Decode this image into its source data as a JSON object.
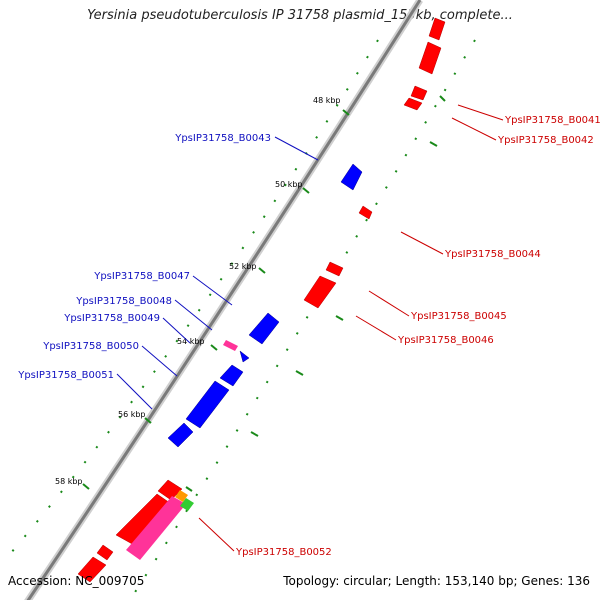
{
  "title": "Yersinia pseudotuberculosis IP 31758 plasmid_153kb, complete...",
  "footer": {
    "accession_label": "Accession:",
    "accession": "NC_009705",
    "topology_label": "Topology:",
    "topology": "circular",
    "length_label": "Length:",
    "length": "153,140 bp",
    "genes_label": "Genes:",
    "genes": "136"
  },
  "kbp_ticks": [
    "48 kbp",
    "50 kbp",
    "52 kbp",
    "54 kbp",
    "56 kbp",
    "58 kbp"
  ],
  "genes_forward": [
    "YpsIP31758_B0043",
    "YpsIP31758_B0047",
    "YpsIP31758_B0048",
    "YpsIP31758_B0049",
    "YpsIP31758_B0050",
    "YpsIP31758_B0051"
  ],
  "genes_reverse": [
    "YpsIP31758_B0041",
    "YpsIP31758_B0042",
    "YpsIP31758_B0044",
    "YpsIP31758_B0045",
    "YpsIP31758_B0046",
    "YpsIP31758_B0052"
  ],
  "colors": {
    "forward_cds": "#0000ff",
    "reverse_cds": "#ff0000",
    "rna": "#ff3399",
    "backbone": "#7a7a7a",
    "tick": "#1a8a1a",
    "label_forward": "#1010c0",
    "label_reverse": "#cc0000"
  }
}
